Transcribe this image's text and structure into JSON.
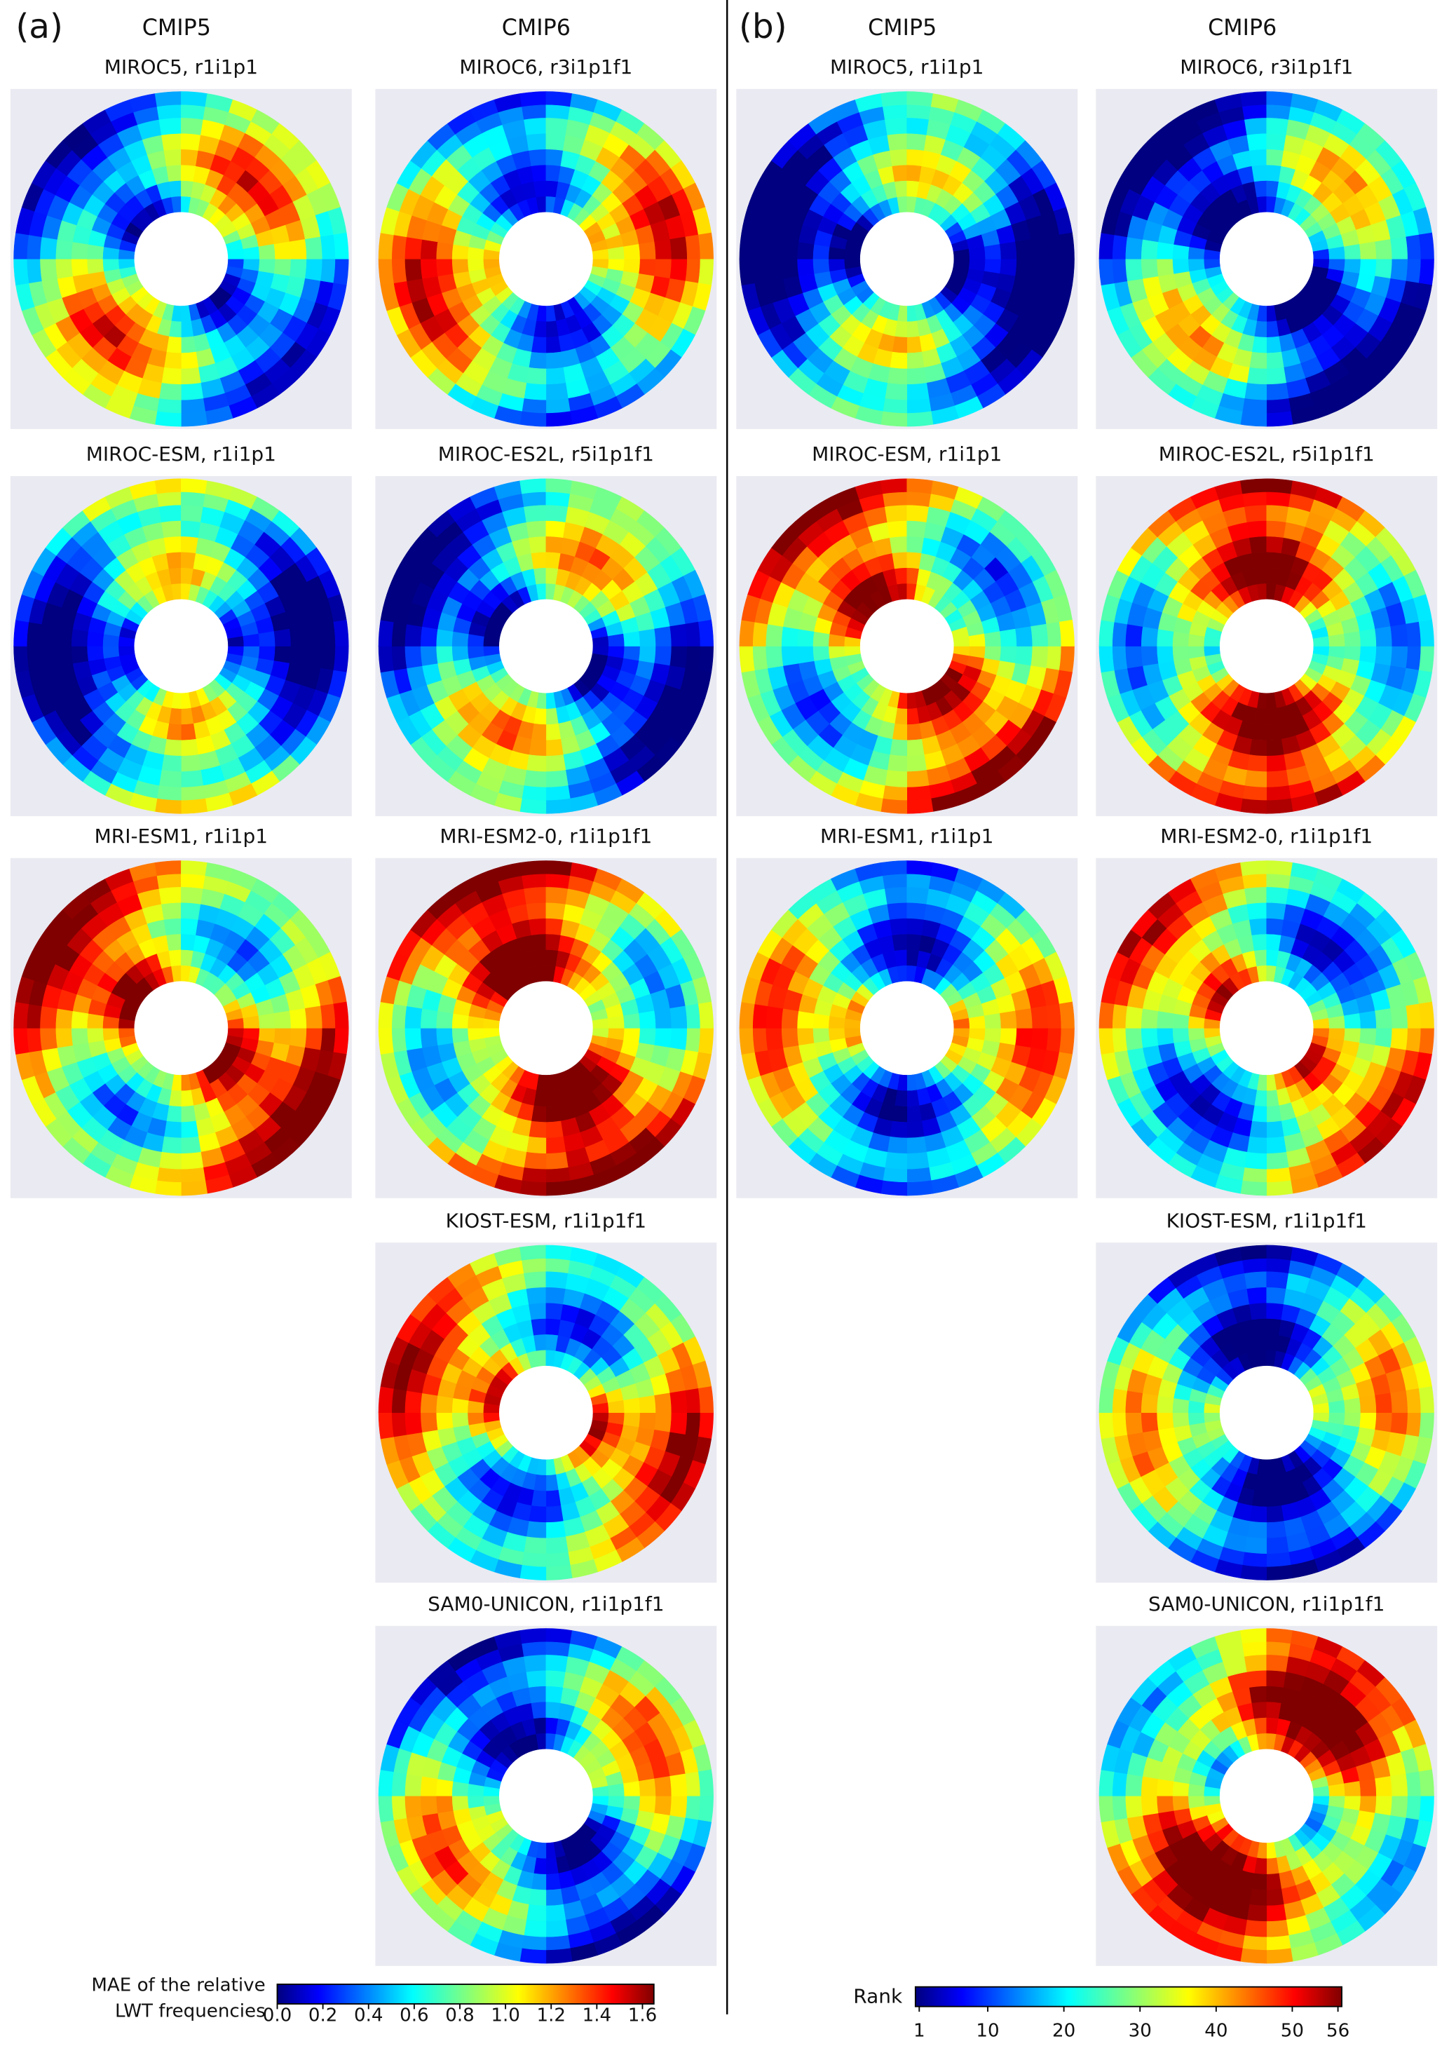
{
  "panels": [
    {
      "label": "(a)",
      "columns": [
        {
          "header": "CMIP5",
          "maps": [
            {
              "title": "MIROC5, r1i1p1"
            },
            {
              "title": "MIROC-ESM, r1i1p1"
            },
            {
              "title": "MRI-ESM1, r1i1p1"
            }
          ]
        },
        {
          "header": "CMIP6",
          "maps": [
            {
              "title": "MIROC6, r3i1p1f1"
            },
            {
              "title": "MIROC-ES2L, r5i1p1f1"
            },
            {
              "title": "MRI-ESM2-0, r1i1p1f1"
            },
            {
              "title": "KIOST-ESM, r1i1p1f1"
            },
            {
              "title": "SAM0-UNICON, r1i1p1f1"
            }
          ]
        }
      ],
      "colorbar": {
        "label": [
          "MAE of the relative",
          "LWT frequencies"
        ],
        "lim": [
          0,
          1.65
        ],
        "ticks": [
          {
            "value": 0,
            "label": "0.0"
          },
          {
            "value": 0.2,
            "label": "0.2"
          },
          {
            "value": 0.4,
            "label": "0.4"
          },
          {
            "value": 0.6,
            "label": "0.6"
          },
          {
            "value": 0.8,
            "label": "0.8"
          },
          {
            "value": 1,
            "label": "1.0"
          },
          {
            "value": 1.2,
            "label": "1.2"
          },
          {
            "value": 1.4,
            "label": "1.4"
          },
          {
            "value": 1.6,
            "label": "1.6"
          }
        ]
      }
    },
    {
      "label": "(b)",
      "columns": [
        {
          "header": "CMIP5",
          "maps": [
            {
              "title": "MIROC5, r1i1p1"
            },
            {
              "title": "MIROC-ESM, r1i1p1"
            },
            {
              "title": "MRI-ESM1, r1i1p1"
            }
          ]
        },
        {
          "header": "CMIP6",
          "maps": [
            {
              "title": "MIROC6, r3i1p1f1"
            },
            {
              "title": "MIROC-ES2L, r5i1p1f1"
            },
            {
              "title": "MRI-ESM2-0, r1i1p1f1"
            },
            {
              "title": "KIOST-ESM, r1i1p1f1"
            },
            {
              "title": "SAM0-UNICON, r1i1p1f1"
            }
          ]
        }
      ],
      "colorbar": {
        "label": [
          "Rank"
        ],
        "lim": [
          0.5,
          56.5
        ],
        "ticks": [
          1,
          10,
          20,
          30,
          40,
          50,
          56
        ]
      }
    }
  ]
}
